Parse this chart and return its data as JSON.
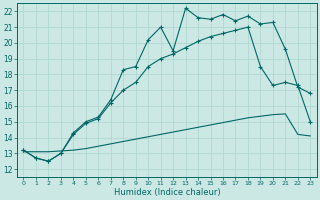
{
  "background_color": "#cce8e4",
  "grid_color": "#b0d8d0",
  "line_color": "#006666",
  "xlabel": "Humidex (Indice chaleur)",
  "xlim": [
    -0.5,
    23.5
  ],
  "ylim": [
    11.5,
    22.5
  ],
  "xticks": [
    0,
    1,
    2,
    3,
    4,
    5,
    6,
    7,
    8,
    9,
    10,
    11,
    12,
    13,
    14,
    15,
    16,
    17,
    18,
    19,
    20,
    21,
    22,
    23
  ],
  "yticks": [
    12,
    13,
    14,
    15,
    16,
    17,
    18,
    19,
    20,
    21,
    22
  ],
  "line1_y": [
    13.2,
    12.7,
    12.5,
    13.0,
    14.3,
    15.0,
    15.3,
    16.4,
    18.3,
    18.5,
    20.2,
    21.0,
    19.5,
    22.2,
    21.6,
    21.5,
    21.8,
    21.4,
    21.7,
    21.2,
    21.3,
    19.6,
    17.2,
    16.8
  ],
  "line2_y": [
    13.2,
    12.7,
    12.5,
    13.0,
    14.2,
    14.9,
    15.2,
    16.2,
    17.0,
    17.5,
    18.5,
    19.0,
    19.3,
    19.7,
    20.1,
    20.4,
    20.6,
    20.8,
    21.0,
    18.5,
    17.3,
    17.5,
    17.3,
    15.0
  ],
  "line3_y": [
    13.1,
    13.1,
    13.1,
    13.15,
    13.2,
    13.3,
    13.45,
    13.6,
    13.75,
    13.9,
    14.05,
    14.2,
    14.35,
    14.5,
    14.65,
    14.8,
    14.95,
    15.1,
    15.25,
    15.35,
    15.45,
    15.5,
    14.2,
    14.1
  ]
}
